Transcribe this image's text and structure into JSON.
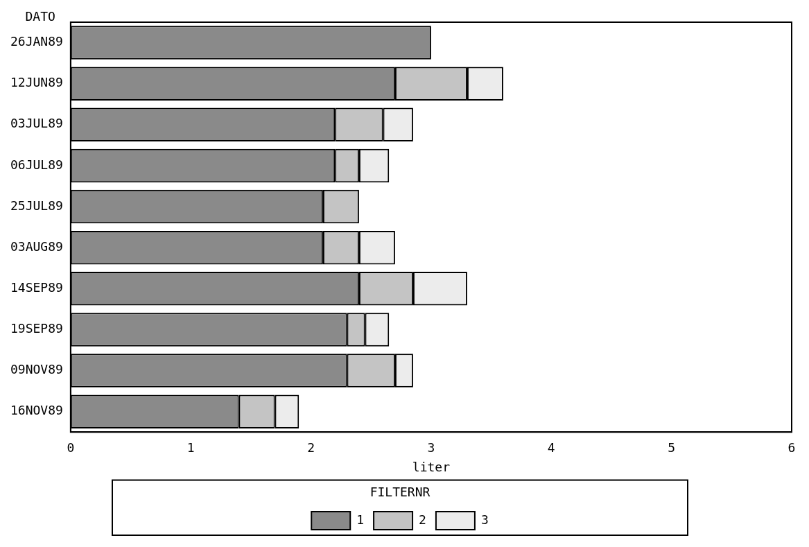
{
  "chart_data": {
    "type": "bar",
    "orientation": "horizontal",
    "stacked": true,
    "ylabel": "DATO",
    "xlabel": "liter",
    "legend_title": "FILTERNR",
    "legend": "bottom",
    "grid": false,
    "categories": [
      "26JAN89",
      "12JUN89",
      "03JUL89",
      "06JUL89",
      "25JUL89",
      "03AUG89",
      "14SEP89",
      "19SEP89",
      "09NOV89",
      "16NOV89"
    ],
    "xlim": [
      0,
      6
    ],
    "xticks": [
      0,
      1,
      2,
      3,
      4,
      5,
      6
    ],
    "series": [
      {
        "name": "1",
        "color": "#8a8a8a",
        "values": [
          3.0,
          2.7,
          2.2,
          2.2,
          2.1,
          2.1,
          2.4,
          2.3,
          2.3,
          1.4
        ]
      },
      {
        "name": "2",
        "color": "#c4c4c4",
        "values": [
          null,
          0.6,
          0.4,
          0.2,
          0.3,
          0.3,
          0.45,
          0.15,
          0.4,
          0.3
        ]
      },
      {
        "name": "3",
        "color": "#ececec",
        "values": [
          null,
          0.3,
          0.25,
          0.25,
          null,
          0.3,
          0.45,
          0.2,
          0.15,
          0.2
        ]
      }
    ]
  }
}
